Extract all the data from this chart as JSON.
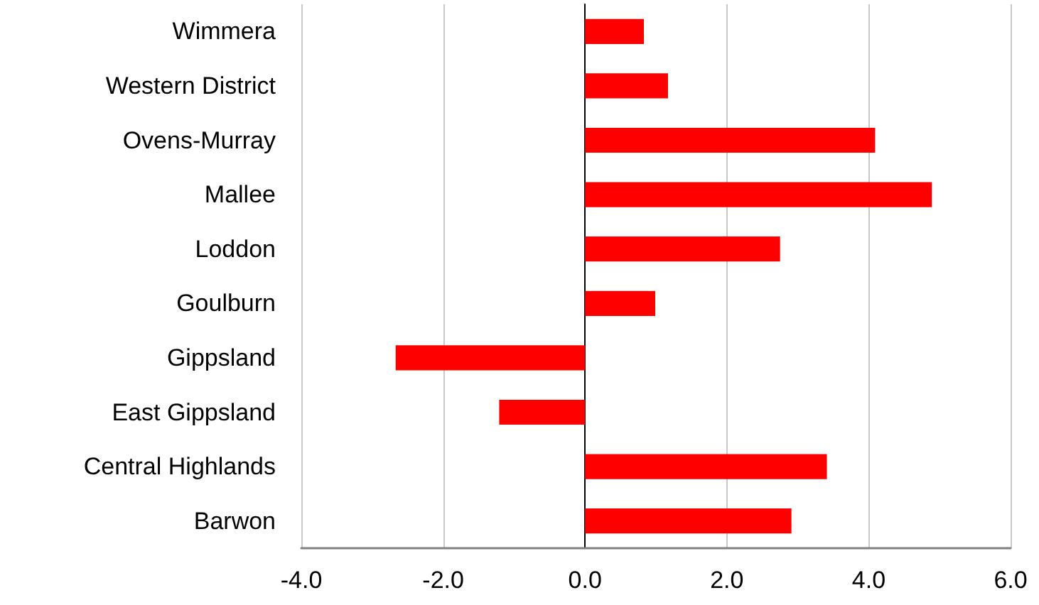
{
  "chart_data": {
    "type": "bar",
    "orientation": "horizontal",
    "categories": [
      "Wimmera",
      "Western District",
      "Ovens-Murray",
      "Mallee",
      "Loddon",
      "Goulburn",
      "Gippsland",
      "East Gippsland",
      "Central Highlands",
      "Barwon"
    ],
    "values": [
      0.83,
      1.17,
      4.09,
      4.89,
      2.75,
      0.99,
      -2.67,
      -1.21,
      3.41,
      2.91
    ],
    "color": "#ff0000",
    "xlim": [
      -4,
      6
    ],
    "xticks": [
      {
        "value": -4,
        "label": "-4.0"
      },
      {
        "value": -2,
        "label": "-2.0"
      },
      {
        "value": 0,
        "label": "0.0"
      },
      {
        "value": 2,
        "label": "2.0"
      },
      {
        "value": 4,
        "label": "4.0"
      },
      {
        "value": 6,
        "label": "6.0"
      }
    ],
    "grid": "x"
  }
}
